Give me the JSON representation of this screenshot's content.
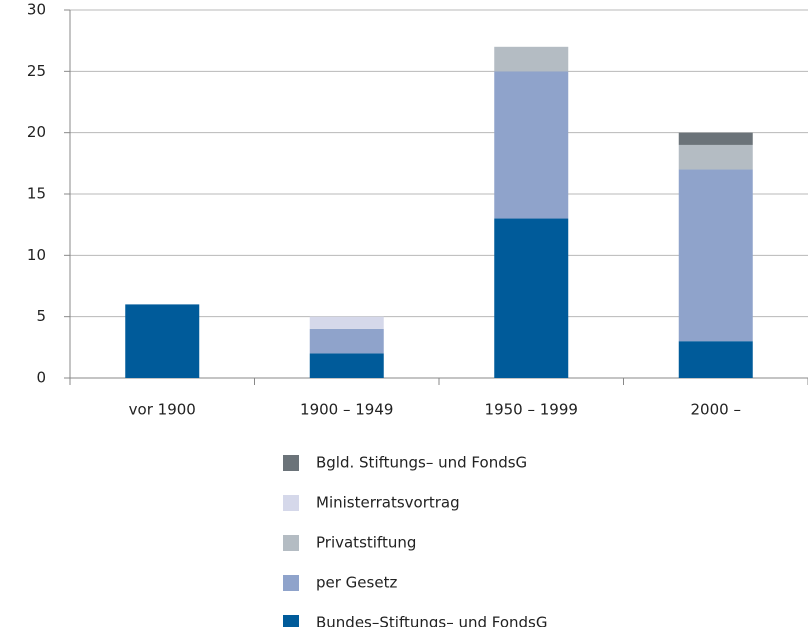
{
  "chart_data": {
    "type": "stacked_bar",
    "categories": [
      "vor 1900",
      "1900 – 1949",
      "1950 – 1999",
      "2000 –"
    ],
    "series": [
      {
        "name": "Bundes–Stiftungs– und FondsG",
        "color": "#005b9a",
        "values": [
          6,
          2,
          13,
          3
        ]
      },
      {
        "name": "per Gesetz",
        "color": "#8fa3cb",
        "values": [
          0,
          2,
          12,
          14
        ]
      },
      {
        "name": "Privatstiftung",
        "color": "#b4bcc3",
        "values": [
          0,
          0,
          2,
          2
        ]
      },
      {
        "name": "Ministerratsvortrag",
        "color": "#d5d8ea",
        "values": [
          0,
          1,
          0,
          0
        ]
      },
      {
        "name": "Bgld. Stiftungs– und FondsG",
        "color": "#6b7379",
        "values": [
          0,
          0,
          0,
          1
        ]
      }
    ],
    "ylim": [
      0,
      30
    ],
    "yticks": [
      0,
      5,
      10,
      15,
      20,
      25,
      30
    ],
    "grid": true,
    "legend": "bottom"
  }
}
